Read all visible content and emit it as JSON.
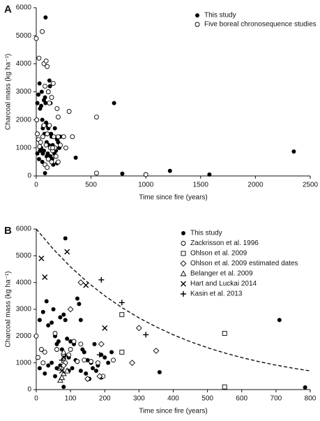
{
  "chart_data": [
    {
      "type": "scatter",
      "panel_label": "A",
      "x_label": "Time since fire (years)",
      "y_label": "Charcoal mass (kg ha⁻¹)",
      "xlim": [
        0,
        2500
      ],
      "xticks": [
        0,
        500,
        1000,
        1500,
        2000,
        2500
      ],
      "ylim": [
        0,
        6000
      ],
      "yticks": [
        0,
        1000,
        2000,
        3000,
        4000,
        5000,
        6000
      ],
      "legend": "upper right",
      "series": [
        {
          "name": "This study",
          "color": "#000000",
          "marker": "filled-circle",
          "x": [
            85,
            10,
            20,
            30,
            35,
            45,
            50,
            55,
            60,
            65,
            70,
            75,
            80,
            85,
            90,
            95,
            100,
            110,
            115,
            120,
            125,
            130,
            135,
            140,
            150,
            160,
            170,
            180,
            190,
            200,
            210,
            220,
            10,
            25,
            35,
            45,
            55,
            60,
            70,
            80,
            95,
            105,
            130,
            145,
            155,
            165,
            175,
            190,
            360,
            710,
            785,
            1220,
            1580,
            2350
          ],
          "values": [
            5650,
            2600,
            2900,
            3300,
            2400,
            2500,
            3000,
            2000,
            1700,
            1800,
            2700,
            1500,
            2800,
            2600,
            1900,
            1200,
            1800,
            1700,
            1100,
            3400,
            3200,
            2600,
            1500,
            1400,
            1100,
            1000,
            1700,
            900,
            1300,
            1200,
            1000,
            1400,
            800,
            600,
            900,
            1000,
            500,
            800,
            900,
            100,
            700,
            800,
            700,
            600,
            400,
            800,
            700,
            450,
            650,
            2600,
            80,
            180,
            50,
            870
          ]
        },
        {
          "name": "Five boreal chronosequence studies",
          "color": "#000000",
          "marker": "open-circle",
          "x": [
            0,
            55,
            25,
            70,
            90,
            100,
            80,
            110,
            140,
            155,
            190,
            200,
            120,
            5,
            10,
            20,
            30,
            40,
            60,
            70,
            90,
            100,
            120,
            130,
            150,
            160,
            170,
            180,
            200,
            80,
            100,
            110,
            140,
            150,
            200,
            220,
            250,
            270,
            300,
            330,
            550,
            550,
            1000
          ],
          "values": [
            4900,
            5150,
            4200,
            4000,
            4100,
            3900,
            3200,
            3000,
            2800,
            3300,
            2400,
            2100,
            2600,
            2000,
            1500,
            1300,
            1050,
            1200,
            1400,
            1800,
            1100,
            1500,
            1800,
            1000,
            900,
            1400,
            1000,
            700,
            500,
            400,
            300,
            600,
            500,
            1000,
            1400,
            1100,
            1400,
            1000,
            2300,
            1400,
            2100,
            100,
            50
          ]
        }
      ]
    },
    {
      "type": "scatter",
      "panel_label": "B",
      "x_label": "Time since fire (years)",
      "y_label": "Charcoal mass (kg ha⁻¹)",
      "xlim": [
        0,
        800
      ],
      "xticks": [
        0,
        100,
        200,
        300,
        400,
        500,
        600,
        700,
        800
      ],
      "ylim": [
        0,
        6000
      ],
      "yticks": [
        0,
        1000,
        2000,
        3000,
        4000,
        5000,
        6000
      ],
      "legend": "upper right",
      "series": [
        {
          "name": "This study",
          "color": "#000000",
          "marker": "filled-circle",
          "x": [
            85,
            10,
            20,
            30,
            35,
            45,
            50,
            55,
            60,
            65,
            70,
            75,
            80,
            85,
            90,
            95,
            100,
            110,
            115,
            120,
            125,
            130,
            135,
            140,
            150,
            160,
            170,
            180,
            190,
            200,
            210,
            220,
            10,
            25,
            35,
            45,
            55,
            60,
            70,
            80,
            95,
            105,
            130,
            145,
            155,
            165,
            175,
            190,
            360,
            710,
            785
          ],
          "values": [
            5650,
            2600,
            2900,
            3300,
            2400,
            2500,
            3000,
            2000,
            1700,
            1800,
            2700,
            1500,
            2800,
            2600,
            1900,
            1200,
            1800,
            1700,
            1100,
            3400,
            3200,
            2600,
            1500,
            1400,
            1100,
            1000,
            1700,
            900,
            1300,
            1200,
            1000,
            1400,
            800,
            600,
            900,
            1000,
            500,
            800,
            900,
            100,
            700,
            800,
            700,
            600,
            400,
            800,
            700,
            450,
            650,
            2600,
            80
          ]
        },
        {
          "name": "Zackrisson et al. 1996",
          "color": "#000000",
          "marker": "open-circle",
          "x": [
            0,
            5,
            15,
            25,
            55,
            85,
            95,
            110,
            120,
            140,
            150,
            160,
            180,
            195,
            225,
            20,
            60,
            100,
            130
          ],
          "values": [
            2000,
            1200,
            1500,
            1400,
            2100,
            1000,
            1300,
            1800,
            1050,
            1100,
            400,
            1050,
            1000,
            500,
            1100,
            1000,
            1500,
            1500,
            1700
          ]
        },
        {
          "name": "Ohlson et al. 2009",
          "color": "#000000",
          "marker": "open-square",
          "x": [
            250,
            250,
            550,
            550
          ],
          "values": [
            2800,
            1400,
            2100,
            100
          ]
        },
        {
          "name": "Ohlson et al. 2009 estimated dates",
          "color": "#000000",
          "marker": "open-diamond",
          "x": [
            130,
            100,
            190,
            300,
            280,
            350,
            185,
            150,
            80
          ],
          "values": [
            4000,
            3000,
            1700,
            2300,
            1000,
            1450,
            500,
            400,
            900
          ]
        },
        {
          "name": "Belanger et al. 2009",
          "color": "#000000",
          "marker": "open-triangle",
          "x": [
            70,
            75,
            70,
            80,
            90,
            80
          ],
          "values": [
            350,
            450,
            800,
            600,
            700,
            1400
          ]
        },
        {
          "name": "Hart and Luckai 2014",
          "color": "#000000",
          "marker": "cross",
          "x": [
            15,
            25,
            90,
            145,
            200,
            80,
            75
          ],
          "values": [
            4900,
            4200,
            5150,
            3900,
            2300,
            1200,
            700
          ]
        },
        {
          "name": "Kasin et al. 2013",
          "color": "#000000",
          "marker": "plus",
          "x": [
            190,
            250,
            320,
            185,
            75,
            85
          ],
          "values": [
            4100,
            3250,
            2050,
            1300,
            1100,
            1250
          ]
        },
        {
          "color": "#000000",
          "line_style": "dashed",
          "x": [
            0,
            50,
            100,
            150,
            200,
            250,
            300,
            350,
            400,
            450,
            500,
            550,
            600,
            650,
            700,
            750,
            800
          ],
          "values": [
            6000,
            5245,
            4586,
            4009,
            3505,
            3064,
            2679,
            2342,
            2047,
            1790,
            1565,
            1368,
            1196,
            1045,
            914,
            799,
            698
          ]
        }
      ]
    }
  ]
}
